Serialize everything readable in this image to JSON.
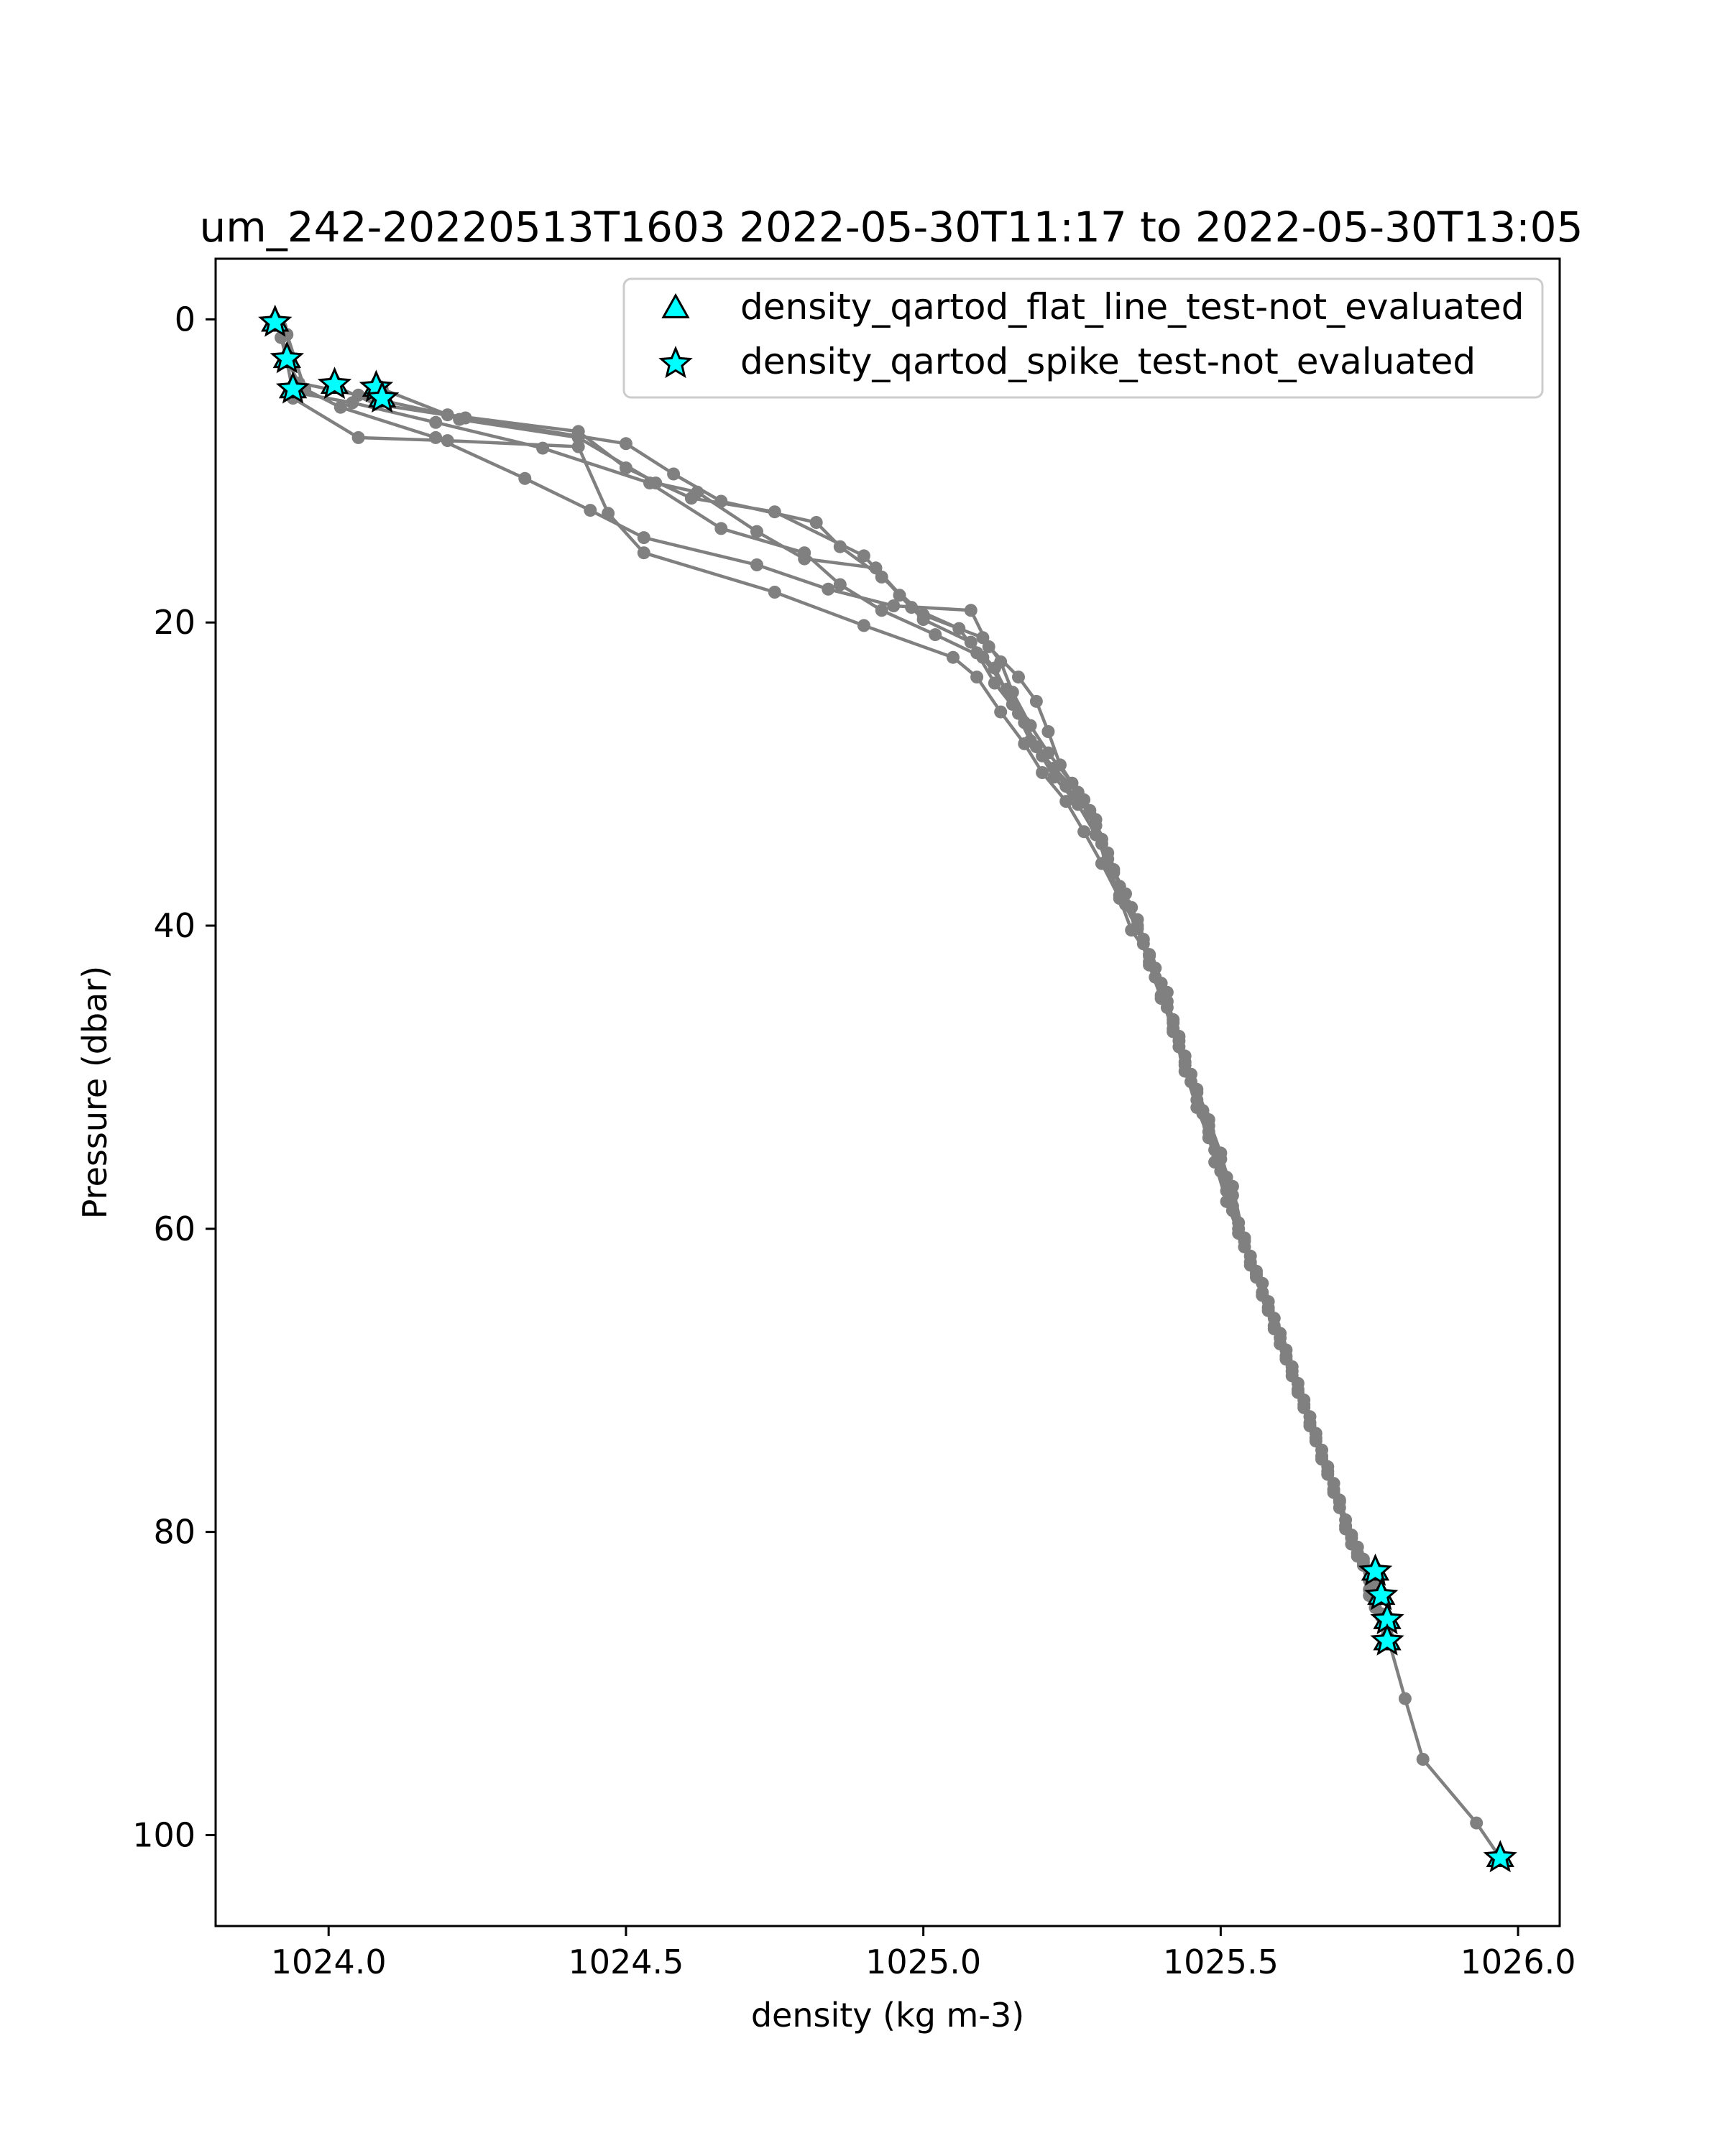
{
  "chart_data": {
    "type": "scatter",
    "title": "um_242-20220513T1603 2022-05-30T11:17 to 2022-05-30T13:05",
    "xlabel": "density (kg m-3)",
    "ylabel": "Pressure (dbar)",
    "xlim": [
      1023.81,
      1026.07
    ],
    "ylim": [
      106,
      -4
    ],
    "y_inverted": true,
    "grid": false,
    "legend_position": "top-right",
    "x_ticks": [
      {
        "value": 1024.0,
        "label": "1024.0"
      },
      {
        "value": 1024.5,
        "label": "1024.5"
      },
      {
        "value": 1025.0,
        "label": "1025.0"
      },
      {
        "value": 1025.5,
        "label": "1025.5"
      },
      {
        "value": 1026.0,
        "label": "1026.0"
      }
    ],
    "y_ticks": [
      {
        "value": 0,
        "label": "0"
      },
      {
        "value": 20,
        "label": "20"
      },
      {
        "value": 40,
        "label": "40"
      },
      {
        "value": 60,
        "label": "60"
      },
      {
        "value": 80,
        "label": "80"
      },
      {
        "value": 100,
        "label": "100"
      }
    ],
    "profile": {
      "color": "#808080",
      "points": [
        [
          1023.91,
          0.3
        ],
        [
          1023.92,
          1.2
        ],
        [
          1023.93,
          2.7
        ],
        [
          1023.95,
          4.2
        ],
        [
          1024.05,
          5.0
        ],
        [
          1024.2,
          6.3
        ],
        [
          1024.42,
          7.4
        ],
        [
          1024.5,
          9.8
        ],
        [
          1024.61,
          11.8
        ],
        [
          1024.75,
          12.7
        ],
        [
          1024.9,
          15.6
        ],
        [
          1024.96,
          18.2
        ],
        [
          1025.0,
          19.8
        ],
        [
          1025.08,
          21.3
        ],
        [
          1025.12,
          23.0
        ],
        [
          1025.15,
          25.4
        ],
        [
          1025.18,
          27.8
        ],
        [
          1025.22,
          29.6
        ],
        [
          1025.27,
          31.7
        ],
        [
          1025.29,
          33.4
        ],
        [
          1025.31,
          35.2
        ],
        [
          1025.33,
          37.4
        ],
        [
          1025.36,
          39.6
        ],
        [
          1025.38,
          41.9
        ],
        [
          1025.4,
          43.8
        ],
        [
          1025.42,
          46.2
        ],
        [
          1025.43,
          48.0
        ],
        [
          1025.45,
          50.3
        ],
        [
          1025.47,
          52.4
        ],
        [
          1025.49,
          54.8
        ],
        [
          1025.51,
          57.5
        ],
        [
          1025.53,
          59.6
        ],
        [
          1025.55,
          61.8
        ],
        [
          1025.57,
          63.6
        ],
        [
          1025.59,
          65.9
        ],
        [
          1025.61,
          68.0
        ],
        [
          1025.63,
          70.2
        ],
        [
          1025.65,
          72.4
        ],
        [
          1025.67,
          74.6
        ],
        [
          1025.69,
          76.8
        ],
        [
          1025.71,
          79.2
        ],
        [
          1025.73,
          81.0
        ],
        [
          1025.75,
          82.6
        ]
      ],
      "overlay_points": [
        [
          1023.92,
          0.5
        ],
        [
          1023.93,
          2.8
        ],
        [
          1023.94,
          4.8
        ],
        [
          1024.04,
          5.5
        ],
        [
          1024.18,
          6.8
        ],
        [
          1024.36,
          8.5
        ],
        [
          1024.54,
          10.8
        ],
        [
          1024.66,
          13.8
        ],
        [
          1024.8,
          15.4
        ],
        [
          1024.86,
          17.5
        ],
        [
          1024.93,
          19.2
        ],
        [
          1025.02,
          20.8
        ],
        [
          1025.1,
          22.3
        ],
        [
          1025.14,
          24.4
        ],
        [
          1025.17,
          26.6
        ],
        [
          1025.2,
          28.8
        ],
        [
          1025.24,
          30.8
        ],
        [
          1025.28,
          32.6
        ],
        [
          1025.3,
          34.6
        ],
        [
          1025.32,
          36.5
        ],
        [
          1025.35,
          38.8
        ],
        [
          1025.37,
          40.9
        ],
        [
          1025.39,
          42.8
        ],
        [
          1025.41,
          45.0
        ],
        [
          1025.43,
          47.3
        ],
        [
          1025.44,
          49.2
        ],
        [
          1025.46,
          51.5
        ],
        [
          1025.48,
          53.6
        ],
        [
          1025.5,
          56.2
        ],
        [
          1025.52,
          58.5
        ],
        [
          1025.54,
          60.6
        ],
        [
          1025.56,
          62.8
        ],
        [
          1025.58,
          64.8
        ],
        [
          1025.6,
          66.9
        ],
        [
          1025.62,
          69.1
        ],
        [
          1025.64,
          71.3
        ],
        [
          1025.66,
          73.5
        ],
        [
          1025.68,
          75.7
        ],
        [
          1025.7,
          77.9
        ],
        [
          1025.72,
          80.2
        ],
        [
          1025.74,
          81.8
        ],
        [
          1025.76,
          84.0
        ],
        [
          1025.77,
          85.6
        ],
        [
          1025.78,
          87.0
        ]
      ],
      "overlay_points_2": [
        [
          1023.93,
          1.0
        ],
        [
          1023.96,
          4.6
        ],
        [
          1024.02,
          5.8
        ],
        [
          1024.18,
          7.8
        ],
        [
          1024.33,
          10.5
        ],
        [
          1024.44,
          12.6
        ],
        [
          1024.53,
          14.4
        ],
        [
          1024.72,
          16.2
        ],
        [
          1024.84,
          17.8
        ],
        [
          1024.95,
          18.9
        ],
        [
          1025.08,
          19.2
        ],
        [
          1025.11,
          21.6
        ],
        [
          1025.16,
          23.6
        ],
        [
          1025.19,
          25.2
        ],
        [
          1025.21,
          27.2
        ],
        [
          1025.23,
          29.4
        ],
        [
          1025.26,
          31.2
        ],
        [
          1025.29,
          33.0
        ],
        [
          1025.31,
          35.6
        ],
        [
          1025.34,
          37.9
        ],
        [
          1025.36,
          40.0
        ],
        [
          1025.38,
          42.4
        ],
        [
          1025.41,
          44.4
        ],
        [
          1025.42,
          46.8
        ],
        [
          1025.44,
          49.0
        ],
        [
          1025.46,
          50.8
        ],
        [
          1025.48,
          52.8
        ],
        [
          1025.5,
          55.0
        ],
        [
          1025.52,
          57.8
        ],
        [
          1025.53,
          60.0
        ],
        [
          1025.55,
          62.2
        ],
        [
          1025.57,
          64.2
        ],
        [
          1025.59,
          66.4
        ],
        [
          1025.61,
          68.6
        ],
        [
          1025.63,
          70.6
        ],
        [
          1025.65,
          72.8
        ],
        [
          1025.67,
          75.0
        ],
        [
          1025.69,
          77.2
        ],
        [
          1025.71,
          79.8
        ],
        [
          1025.73,
          81.4
        ],
        [
          1025.75,
          83.2
        ],
        [
          1025.76,
          85.0
        ],
        [
          1025.78,
          86.4
        ]
      ],
      "overlay_points_3": [
        [
          1023.94,
          5.2
        ],
        [
          1024.05,
          7.8
        ],
        [
          1024.2,
          8.0
        ],
        [
          1024.42,
          8.4
        ],
        [
          1024.47,
          12.8
        ],
        [
          1024.53,
          15.4
        ],
        [
          1024.75,
          18.0
        ],
        [
          1024.9,
          20.2
        ],
        [
          1025.05,
          22.3
        ],
        [
          1025.09,
          23.6
        ],
        [
          1025.13,
          25.9
        ],
        [
          1025.17,
          28.0
        ],
        [
          1025.2,
          29.9
        ],
        [
          1025.24,
          31.8
        ],
        [
          1025.27,
          33.8
        ],
        [
          1025.3,
          35.9
        ],
        [
          1025.33,
          38.2
        ],
        [
          1025.35,
          40.3
        ],
        [
          1025.38,
          42.0
        ],
        [
          1025.4,
          44.6
        ],
        [
          1025.42,
          47.0
        ],
        [
          1025.44,
          49.6
        ],
        [
          1025.46,
          52.0
        ],
        [
          1025.48,
          54.0
        ],
        [
          1025.51,
          56.6
        ],
        [
          1025.52,
          58.8
        ],
        [
          1025.54,
          61.2
        ],
        [
          1025.56,
          63.2
        ],
        [
          1025.58,
          65.2
        ],
        [
          1025.6,
          67.6
        ],
        [
          1025.62,
          69.7
        ],
        [
          1025.64,
          71.8
        ],
        [
          1025.66,
          74.0
        ],
        [
          1025.68,
          76.2
        ],
        [
          1025.7,
          78.4
        ],
        [
          1025.72,
          80.8
        ],
        [
          1025.74,
          82.0
        ],
        [
          1025.75,
          83.8
        ],
        [
          1025.77,
          85.4
        ],
        [
          1025.78,
          86.8
        ],
        [
          1025.81,
          91.0
        ],
        [
          1025.84,
          95.0
        ],
        [
          1025.93,
          99.2
        ],
        [
          1025.97,
          101.5
        ]
      ],
      "overlay_points_4": [
        [
          1024.01,
          4.4
        ],
        [
          1024.08,
          5.6
        ],
        [
          1024.23,
          6.5
        ],
        [
          1024.5,
          8.2
        ],
        [
          1024.58,
          10.2
        ],
        [
          1024.66,
          12.0
        ],
        [
          1024.82,
          13.4
        ],
        [
          1024.86,
          15.0
        ],
        [
          1024.93,
          17.0
        ],
        [
          1025.0,
          19.5
        ],
        [
          1025.1,
          21.0
        ],
        [
          1025.13,
          22.6
        ],
        [
          1025.15,
          24.6
        ],
        [
          1025.18,
          26.8
        ],
        [
          1025.21,
          28.6
        ],
        [
          1025.25,
          30.6
        ],
        [
          1025.28,
          32.4
        ],
        [
          1025.3,
          34.3
        ],
        [
          1025.32,
          36.3
        ],
        [
          1025.34,
          38.6
        ],
        [
          1025.37,
          41.2
        ],
        [
          1025.39,
          43.4
        ],
        [
          1025.41,
          45.4
        ],
        [
          1025.43,
          47.6
        ],
        [
          1025.45,
          49.8
        ],
        [
          1025.47,
          52.2
        ],
        [
          1025.49,
          55.6
        ],
        [
          1025.51,
          58.2
        ],
        [
          1025.53,
          60.3
        ],
        [
          1025.55,
          62.4
        ],
        [
          1025.57,
          64.4
        ],
        [
          1025.59,
          66.6
        ],
        [
          1025.61,
          68.4
        ],
        [
          1025.63,
          70.8
        ],
        [
          1025.65,
          73.0
        ],
        [
          1025.67,
          75.2
        ],
        [
          1025.69,
          77.4
        ],
        [
          1025.71,
          79.6
        ],
        [
          1025.73,
          81.6
        ],
        [
          1025.76,
          83.4
        ]
      ],
      "overlay_points_5": [
        [
          1024.09,
          4.6
        ],
        [
          1024.22,
          6.6
        ],
        [
          1024.42,
          7.8
        ],
        [
          1024.55,
          10.8
        ],
        [
          1024.62,
          11.4
        ],
        [
          1024.72,
          14.0
        ],
        [
          1024.8,
          15.8
        ],
        [
          1024.92,
          16.4
        ],
        [
          1024.98,
          19.0
        ],
        [
          1025.06,
          20.4
        ],
        [
          1025.09,
          22.0
        ],
        [
          1025.12,
          24.0
        ],
        [
          1025.16,
          26.0
        ],
        [
          1025.19,
          28.2
        ],
        [
          1025.22,
          30.2
        ],
        [
          1025.26,
          32.0
        ],
        [
          1025.29,
          34.0
        ],
        [
          1025.31,
          36.0
        ],
        [
          1025.33,
          38.0
        ],
        [
          1025.36,
          40.2
        ],
        [
          1025.38,
          42.6
        ],
        [
          1025.4,
          44.8
        ],
        [
          1025.42,
          46.4
        ],
        [
          1025.44,
          48.6
        ],
        [
          1025.46,
          51.0
        ],
        [
          1025.48,
          53.2
        ],
        [
          1025.5,
          55.4
        ],
        [
          1025.52,
          57.2
        ],
        [
          1025.54,
          60.8
        ],
        [
          1025.56,
          63.0
        ],
        [
          1025.58,
          65.4
        ],
        [
          1025.6,
          67.2
        ],
        [
          1025.62,
          69.4
        ],
        [
          1025.64,
          71.6
        ],
        [
          1025.66,
          73.8
        ],
        [
          1025.68,
          76.0
        ],
        [
          1025.7,
          78.0
        ],
        [
          1025.72,
          80.4
        ],
        [
          1025.74,
          82.2
        ],
        [
          1025.75,
          84.2
        ]
      ]
    },
    "series": [
      {
        "name": "density_qartod_flat_line_test-not_evaluated",
        "marker": "triangle",
        "color": "#00ffff",
        "points": [
          [
            1023.91,
            0.2
          ],
          [
            1023.93,
            2.6
          ],
          [
            1023.94,
            4.6
          ],
          [
            1024.01,
            4.3
          ],
          [
            1024.08,
            4.5
          ],
          [
            1024.09,
            5.2
          ],
          [
            1025.76,
            82.6
          ],
          [
            1025.77,
            84.2
          ],
          [
            1025.78,
            85.8
          ],
          [
            1025.78,
            87.2
          ],
          [
            1025.97,
            101.5
          ]
        ]
      },
      {
        "name": "density_qartod_spike_test-not_evaluated",
        "marker": "star",
        "color": "#00ffff",
        "points": [
          [
            1023.91,
            0.2
          ],
          [
            1023.93,
            2.6
          ],
          [
            1023.94,
            4.6
          ],
          [
            1024.01,
            4.3
          ],
          [
            1024.08,
            4.5
          ],
          [
            1024.09,
            5.2
          ],
          [
            1025.76,
            82.6
          ],
          [
            1025.77,
            84.2
          ],
          [
            1025.78,
            85.8
          ],
          [
            1025.78,
            87.2
          ],
          [
            1025.97,
            101.5
          ]
        ]
      }
    ]
  }
}
